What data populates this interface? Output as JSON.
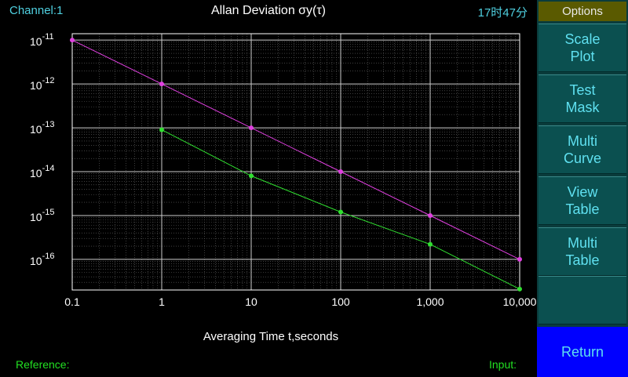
{
  "header": {
    "channel": "Channel:1",
    "title": "Allan Deviation σy(τ)",
    "clock": "17时47分"
  },
  "footer": {
    "reference_label": "Reference:",
    "input_label": "Input:"
  },
  "sidebar": {
    "header": "Options",
    "buttons": [
      {
        "label": "Scale Plot"
      },
      {
        "label": "Test Mask"
      },
      {
        "label": "Multi Curve"
      },
      {
        "label": "View Table"
      },
      {
        "label": "Multi Table"
      },
      {
        "label": ""
      }
    ],
    "return_label": "Return"
  },
  "colors": {
    "series_1": "#e040e0",
    "series_2": "#30e030",
    "axis_text": "#ffffff",
    "grid": "#cccccc"
  },
  "chart_data": {
    "type": "line",
    "title": "Allan Deviation σy(τ)",
    "xlabel": "Averaging Time t,seconds",
    "ylabel": "",
    "x_scale": "log",
    "y_scale": "log",
    "xlim": [
      0.1,
      10000
    ],
    "ylim": [
      2e-17,
      1.4e-11
    ],
    "x_tick_labels": [
      "0.1",
      "1",
      "10",
      "100",
      "1,000",
      "10,000"
    ],
    "x_tick_values": [
      0.1,
      1,
      10,
      100,
      1000,
      10000
    ],
    "y_tick_exponents": [
      "-11",
      "-12",
      "-13",
      "-14",
      "-15",
      "-16"
    ],
    "y_tick_values": [
      1e-11,
      1e-12,
      1e-13,
      1e-14,
      1e-15,
      1e-16
    ],
    "grid": true,
    "series": [
      {
        "x": [
          0.1,
          1,
          10,
          100,
          1000,
          10000
        ],
        "y": [
          1e-11,
          1e-12,
          1e-13,
          1e-14,
          1e-15,
          1e-16
        ]
      },
      {
        "x": [
          1,
          10,
          100,
          1000,
          10000
        ],
        "y": [
          9e-14,
          8e-15,
          1.2e-15,
          2.2e-16,
          2.1e-17
        ]
      }
    ]
  }
}
